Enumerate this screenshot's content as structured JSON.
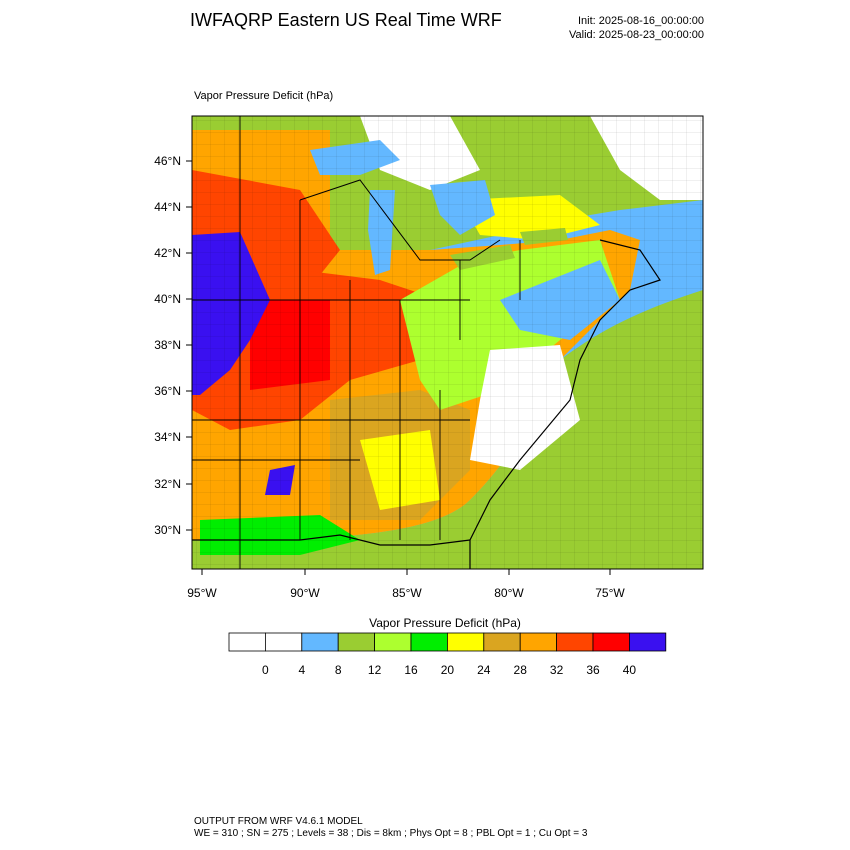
{
  "header": {
    "title": "IWFAQRP Eastern US Real Time WRF",
    "init": "Init: 2025-08-16_00:00:00",
    "valid": "Valid: 2025-08-23_00:00:00"
  },
  "map": {
    "field_label": "Vapor Pressure Deficit   (hPa)",
    "lat_labels": [
      "46°N",
      "44°N",
      "42°N",
      "40°N",
      "38°N",
      "36°N",
      "34°N",
      "32°N",
      "30°N"
    ],
    "lon_labels": [
      "95°W",
      "90°W",
      "85°W",
      "80°W",
      "75°W"
    ]
  },
  "colorbar": {
    "title": "Vapor Pressure Deficit  (hPa)",
    "colors": [
      "#ffffff",
      "#ffffff",
      "#63b8ff",
      "#9acd32",
      "#adff2f",
      "#00ee00",
      "#ffff00",
      "#daa520",
      "#ffa500",
      "#ff4500",
      "#ff0000",
      "#3a10f0"
    ],
    "tick_labels": [
      "0",
      "4",
      "8",
      "12",
      "16",
      "20",
      "24",
      "28",
      "32",
      "36",
      "40"
    ]
  },
  "footer": {
    "line1": "OUTPUT FROM WRF V4.6.1 MODEL",
    "line2": "WE = 310 ; SN = 275 ; Levels = 38 ; Dis = 8km ; Phys Opt = 8 ; PBL Opt = 1 ; Cu Opt = 3"
  }
}
